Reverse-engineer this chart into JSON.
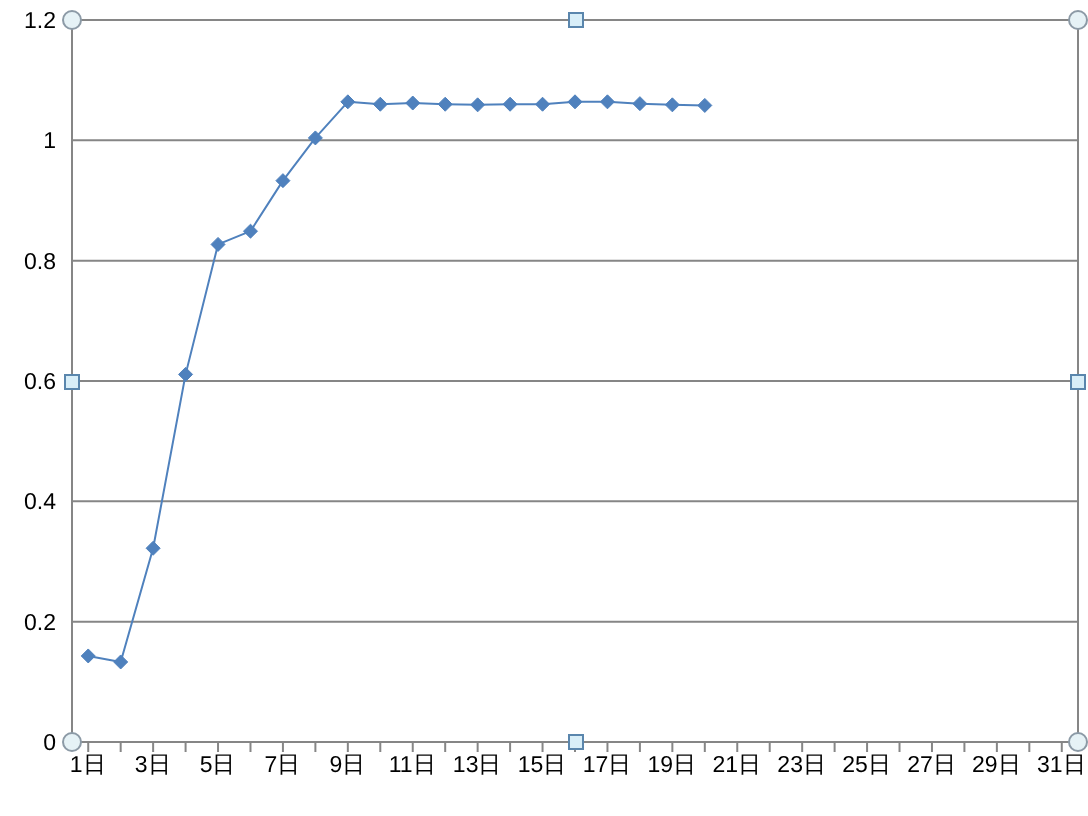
{
  "chart_data": {
    "type": "line",
    "categories": [
      "1日",
      null,
      "3日",
      null,
      "5日",
      null,
      "7日",
      null,
      "9日",
      null,
      "11日",
      null,
      "13日",
      null,
      "15日",
      null,
      "17日",
      null,
      "19日",
      null,
      "21日",
      null,
      "23日",
      null,
      "25日",
      null,
      "27日",
      null,
      "29日",
      null,
      "31日"
    ],
    "series": [
      {
        "color": "#4f81bd",
        "values": [
          0.143,
          0.133,
          0.322,
          0.611,
          0.827,
          0.849,
          0.933,
          1.004,
          1.064,
          1.06,
          1.062,
          1.06,
          1.059,
          1.06,
          1.06,
          1.064,
          1.064,
          1.061,
          1.059,
          1.058,
          null,
          null,
          null,
          null,
          null,
          null,
          null,
          null,
          null,
          null,
          null
        ]
      }
    ],
    "ylim": [
      0,
      1.2
    ],
    "yticks": [
      0,
      0.2,
      0.4,
      0.6,
      0.8,
      1,
      1.2
    ],
    "grid": "y",
    "marker": "diamond",
    "line_style": "solid"
  }
}
